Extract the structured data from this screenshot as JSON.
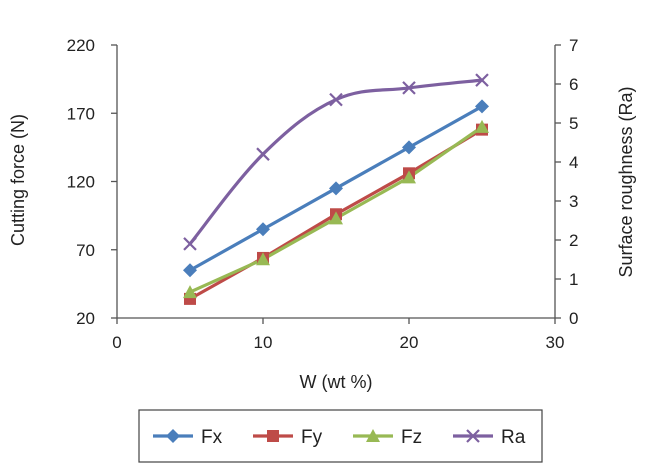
{
  "chart_data": {
    "type": "line",
    "x": [
      5,
      10,
      15,
      20,
      25
    ],
    "xlabel": "W (wt %)",
    "xlim": [
      0,
      30
    ],
    "xticks": [
      "0",
      "10",
      "20",
      "30"
    ],
    "ylabel": "Cutting force (N)",
    "ylim": [
      20,
      220
    ],
    "yticks": [
      "20",
      "70",
      "120",
      "170",
      "220"
    ],
    "y2label": "Surface roughness (Ra)",
    "y2lim": [
      0,
      7
    ],
    "y2ticks": [
      "0",
      "1",
      "2",
      "3",
      "4",
      "5",
      "6",
      "7"
    ],
    "grid": false,
    "legend_position": "bottom",
    "series": [
      {
        "name": "Fx",
        "axis": "left",
        "values": [
          55,
          85,
          115,
          145,
          175
        ],
        "color": "#4a7ebb",
        "marker": "diamond"
      },
      {
        "name": "Fy",
        "axis": "left",
        "values": [
          34,
          64,
          96,
          126,
          158
        ],
        "color": "#be4b48",
        "marker": "square"
      },
      {
        "name": "Fz",
        "axis": "left",
        "values": [
          39,
          63,
          93,
          123,
          160
        ],
        "color": "#98b954",
        "marker": "triangle"
      },
      {
        "name": "Ra",
        "axis": "right",
        "values": [
          1.9,
          4.2,
          5.6,
          5.9,
          6.1
        ],
        "color": "#7d60a0",
        "marker": "x"
      }
    ]
  }
}
